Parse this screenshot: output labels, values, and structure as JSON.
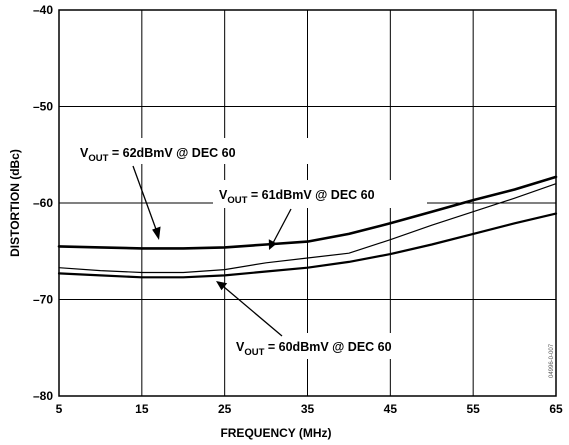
{
  "chart_data": {
    "type": "line",
    "title": "",
    "xlabel": "FREQUENCY (MHz)",
    "ylabel": "DISTORTION (dBc)",
    "xlim": [
      5,
      65
    ],
    "ylim": [
      -80,
      -40
    ],
    "x_ticks": [
      5,
      15,
      25,
      35,
      45,
      55,
      65
    ],
    "y_ticks": [
      -80,
      -70,
      -60,
      -50,
      -40
    ],
    "grid": true,
    "legend": "none",
    "series": [
      {
        "x": [
          5,
          10,
          15,
          20,
          25,
          30,
          35,
          40,
          45,
          50,
          55,
          60,
          65
        ],
        "values": [
          -64.5,
          -64.6,
          -64.7,
          -64.7,
          -64.6,
          -64.3,
          -64.0,
          -63.2,
          -62.1,
          -60.9,
          -59.7,
          -58.6,
          -57.3
        ]
      },
      {
        "x": [
          5,
          10,
          15,
          20,
          25,
          30,
          35,
          40,
          45,
          50,
          55,
          60,
          65
        ],
        "values": [
          -66.7,
          -67.0,
          -67.2,
          -67.2,
          -66.9,
          -66.2,
          -65.7,
          -65.2,
          -63.8,
          -62.3,
          -60.9,
          -59.5,
          -58.0
        ]
      },
      {
        "x": [
          5,
          10,
          15,
          20,
          25,
          30,
          35,
          40,
          45,
          50,
          55,
          60,
          65
        ],
        "values": [
          -67.3,
          -67.5,
          -67.7,
          -67.7,
          -67.5,
          -67.1,
          -66.7,
          -66.1,
          -65.3,
          -64.3,
          -63.2,
          -62.1,
          -61.1
        ]
      }
    ],
    "annotations": [
      {
        "prefix": "V",
        "sub": "OUT",
        "text": " = 62dBmV @ DEC 60"
      },
      {
        "prefix": "V",
        "sub": "OUT",
        "text": " = 61dBmV @ DEC 60"
      },
      {
        "prefix": "V",
        "sub": "OUT",
        "text": " = 60dBmV @ DEC 60"
      }
    ],
    "figure_id": "04996-0-007"
  }
}
